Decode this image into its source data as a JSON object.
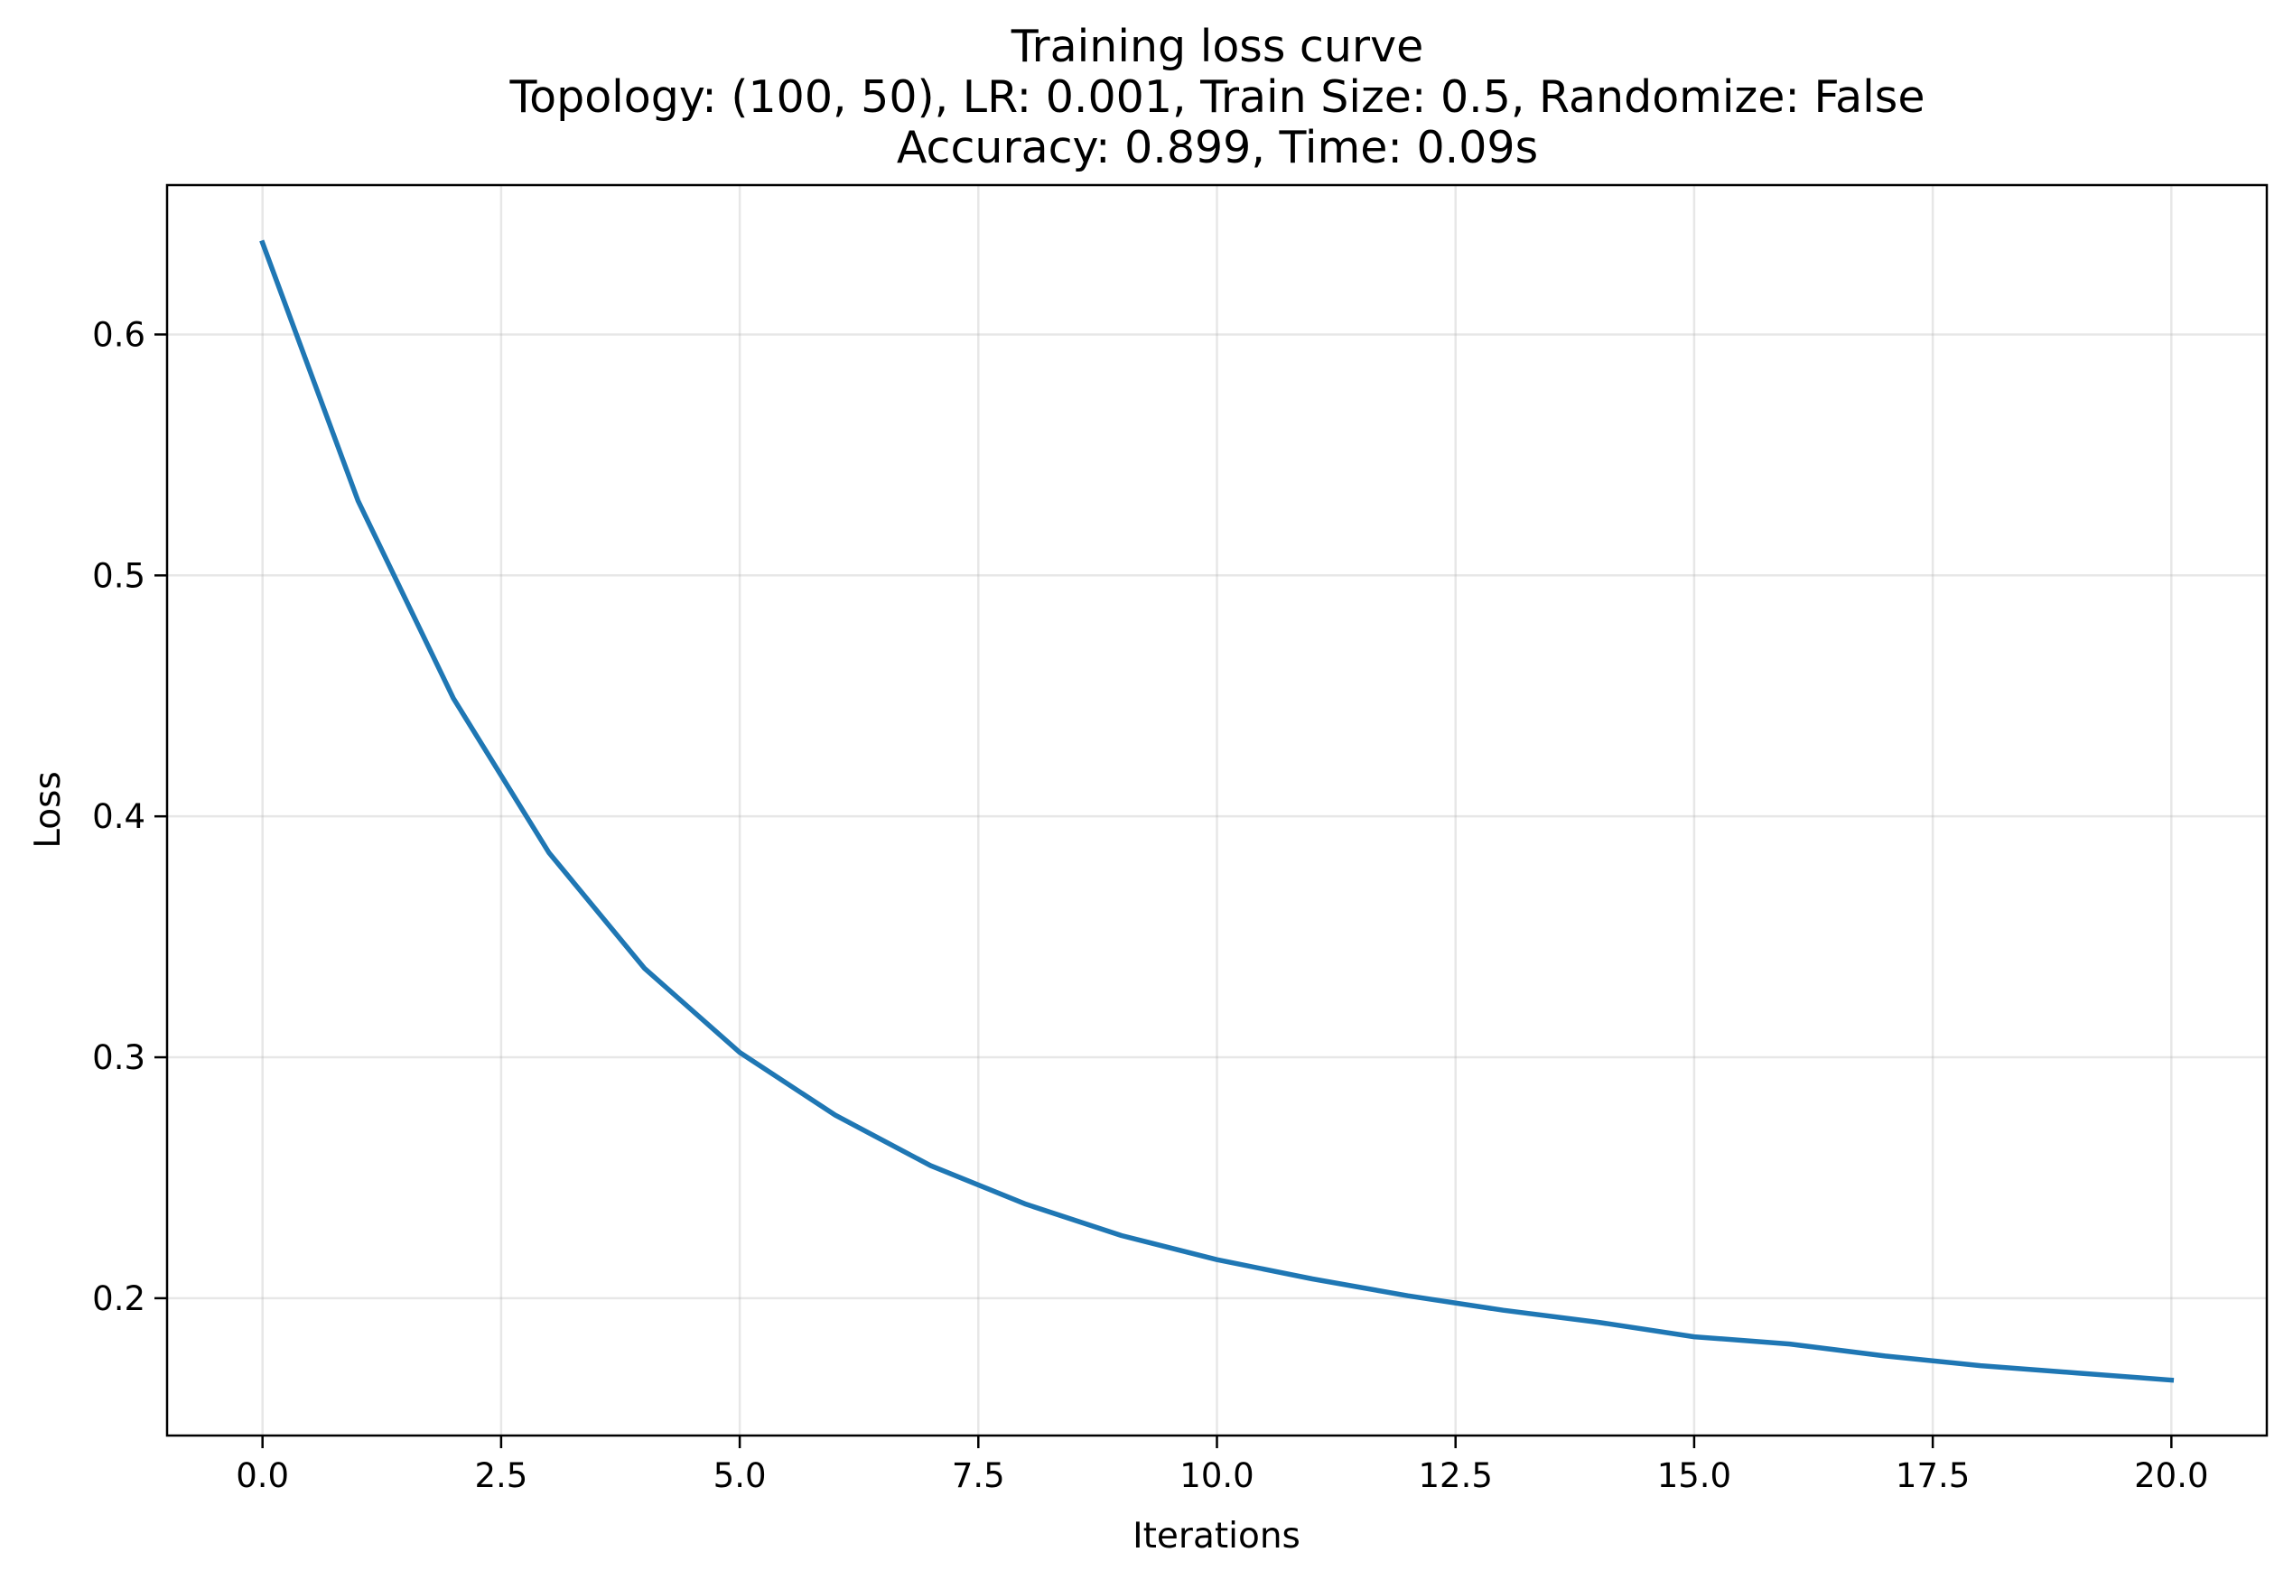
{
  "chart_data": {
    "type": "line",
    "title": "Training loss curve",
    "subtitle_lines": [
      "Topology: (100, 50), LR: 0.001, Train Size: 0.5, Randomize: False",
      "Accuracy: 0.899, Time: 0.09s"
    ],
    "xlabel": "Iterations",
    "ylabel": "Loss",
    "xlim": [
      -1,
      21
    ],
    "ylim": [
      0.143,
      0.662
    ],
    "xticks": [
      0.0,
      2.5,
      5.0,
      7.5,
      10.0,
      12.5,
      15.0,
      17.5,
      20.0
    ],
    "xtick_labels": [
      "0.0",
      "2.5",
      "5.0",
      "7.5",
      "10.0",
      "12.5",
      "15.0",
      "17.5",
      "20.0"
    ],
    "yticks": [
      0.2,
      0.3,
      0.4,
      0.5,
      0.6
    ],
    "ytick_labels": [
      "0.2",
      "0.3",
      "0.4",
      "0.5",
      "0.6"
    ],
    "grid": true,
    "legend": false,
    "series": [
      {
        "color": "#1f77b4",
        "x": [
          0,
          1,
          2,
          3,
          4,
          5,
          6,
          7,
          8,
          9,
          10,
          11,
          12,
          13,
          14,
          15,
          16,
          17,
          18,
          19,
          20
        ],
        "y": [
          0.638,
          0.531,
          0.449,
          0.385,
          0.337,
          0.302,
          0.276,
          0.255,
          0.239,
          0.226,
          0.216,
          0.208,
          0.201,
          0.195,
          0.19,
          0.184,
          0.181,
          0.176,
          0.172,
          0.169,
          0.166
        ]
      }
    ]
  }
}
